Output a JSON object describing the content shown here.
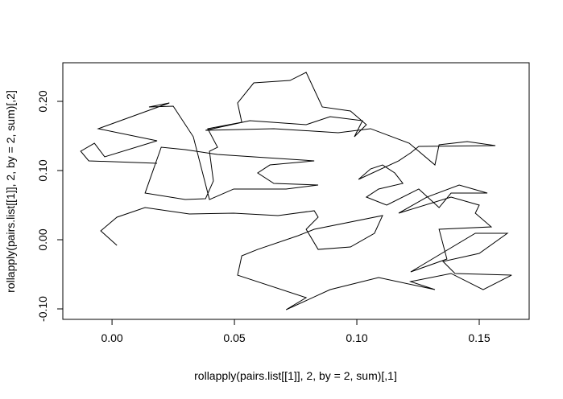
{
  "chart_data": {
    "type": "line",
    "x_label": "rollapply(pairs.list[[1]], 2, by = 2, sum)[,1]",
    "y_label": "rollapply(pairs.list[[1]], 2, by = 2, sum)[,2]",
    "x": [
      0.002,
      -0.0046,
      0.002,
      0.0135,
      0.0316,
      0.0497,
      0.0678,
      0.0826,
      0.0842,
      0.0793,
      0.0842,
      0.0974,
      0.1072,
      0.1105,
      0.0826,
      0.076,
      0.0595,
      0.053,
      0.0513,
      0.0793,
      0.0711,
      0.0891,
      0.1089,
      0.1319,
      0.122,
      0.1385,
      0.1516,
      0.1632,
      0.1401,
      0.1352,
      0.15,
      0.1615,
      0.1484,
      0.122,
      0.1368,
      0.1336,
      0.1549,
      0.1484,
      0.15,
      0.1385,
      0.1171,
      0.1286,
      0.1418,
      0.1533,
      0.1385,
      0.1336,
      0.1253,
      0.1122,
      0.1039,
      0.1089,
      0.1188,
      0.1155,
      0.1105,
      0.1056,
      0.1007,
      0.1171,
      0.122,
      0.1253,
      0.1566,
      0.1451,
      0.1336,
      0.1319,
      0.1214,
      0.1056,
      0.0924,
      0.0661,
      0.0382,
      0.0563,
      0.0793,
      0.0891,
      0.1023,
      0.099,
      0.1039,
      0.0974,
      0.0859,
      0.0793,
      0.0727,
      0.0579,
      0.0513,
      0.053,
      0.0391,
      0.0431,
      0.0398,
      0.0414,
      0.0382,
      0.0299,
      0.0135,
      0.0201,
      0.0299,
      0.0431,
      0.0579,
      0.0826,
      0.0645,
      0.0595,
      0.0661,
      0.0842,
      0.0711,
      0.0497,
      0.0398,
      0.0332,
      0.025,
      0.0151,
      0.0234,
      -0.0056,
      0.0184,
      -0.003,
      -0.0072,
      -0.0128,
      -0.0095,
      0.0184
    ],
    "series": [
      {
        "color": "#000000",
        "values": [
          -0.0081,
          0.0128,
          0.0326,
          0.0465,
          0.0372,
          0.0384,
          0.0349,
          0.0419,
          0.0326,
          0.0151,
          -0.014,
          -0.0105,
          0.0093,
          0.0349,
          0.0151,
          0.0058,
          -0.014,
          -0.0233,
          -0.0512,
          -0.0837,
          -0.1012,
          -0.0721,
          -0.0547,
          -0.0721,
          -0.0605,
          -0.0488,
          -0.0721,
          -0.0512,
          -0.0488,
          -0.0314,
          -0.0198,
          0.0093,
          0.0093,
          -0.0465,
          -0.0279,
          0.0151,
          0.0186,
          0.0384,
          0.05,
          0.0616,
          0.0384,
          0.0616,
          0.0791,
          0.0674,
          0.0674,
          0.0465,
          0.0733,
          0.05,
          0.0616,
          0.0733,
          0.0814,
          0.0965,
          0.1081,
          0.1023,
          0.0872,
          0.114,
          0.1256,
          0.1349,
          0.136,
          0.1419,
          0.1372,
          0.1081,
          0.1395,
          0.1605,
          0.1547,
          0.1605,
          0.1581,
          0.1721,
          0.1663,
          0.1779,
          0.1721,
          0.1488,
          0.1663,
          0.186,
          0.1919,
          0.2419,
          0.2302,
          0.2267,
          0.1977,
          0.1698,
          0.1605,
          0.1337,
          0.1279,
          0.0849,
          0.0593,
          0.0581,
          0.0674,
          0.1337,
          0.1302,
          0.1233,
          0.1198,
          0.114,
          0.1081,
          0.0965,
          0.0814,
          0.0791,
          0.0733,
          0.0733,
          0.0581,
          0.1488,
          0.193,
          0.1919,
          0.1977,
          0.1605,
          0.143,
          0.1198,
          0.1395,
          0.1279,
          0.114,
          0.1105
        ]
      }
    ],
    "xlim": [
      -0.0201,
      0.1704
    ],
    "ylim": [
      -0.1151,
      0.2558
    ],
    "xticks": [
      {
        "value": 0,
        "label": "0.00"
      },
      {
        "value": 0.05,
        "label": "0.05"
      },
      {
        "value": 0.1,
        "label": "0.10"
      },
      {
        "value": 0.15,
        "label": "0.15"
      }
    ],
    "yticks": [
      {
        "value": -0.1,
        "label": "-0.10"
      },
      {
        "value": 0,
        "label": "0.00"
      },
      {
        "value": 0.1,
        "label": "0.10"
      },
      {
        "value": 0.2,
        "label": "0.20"
      }
    ],
    "grid": false
  }
}
